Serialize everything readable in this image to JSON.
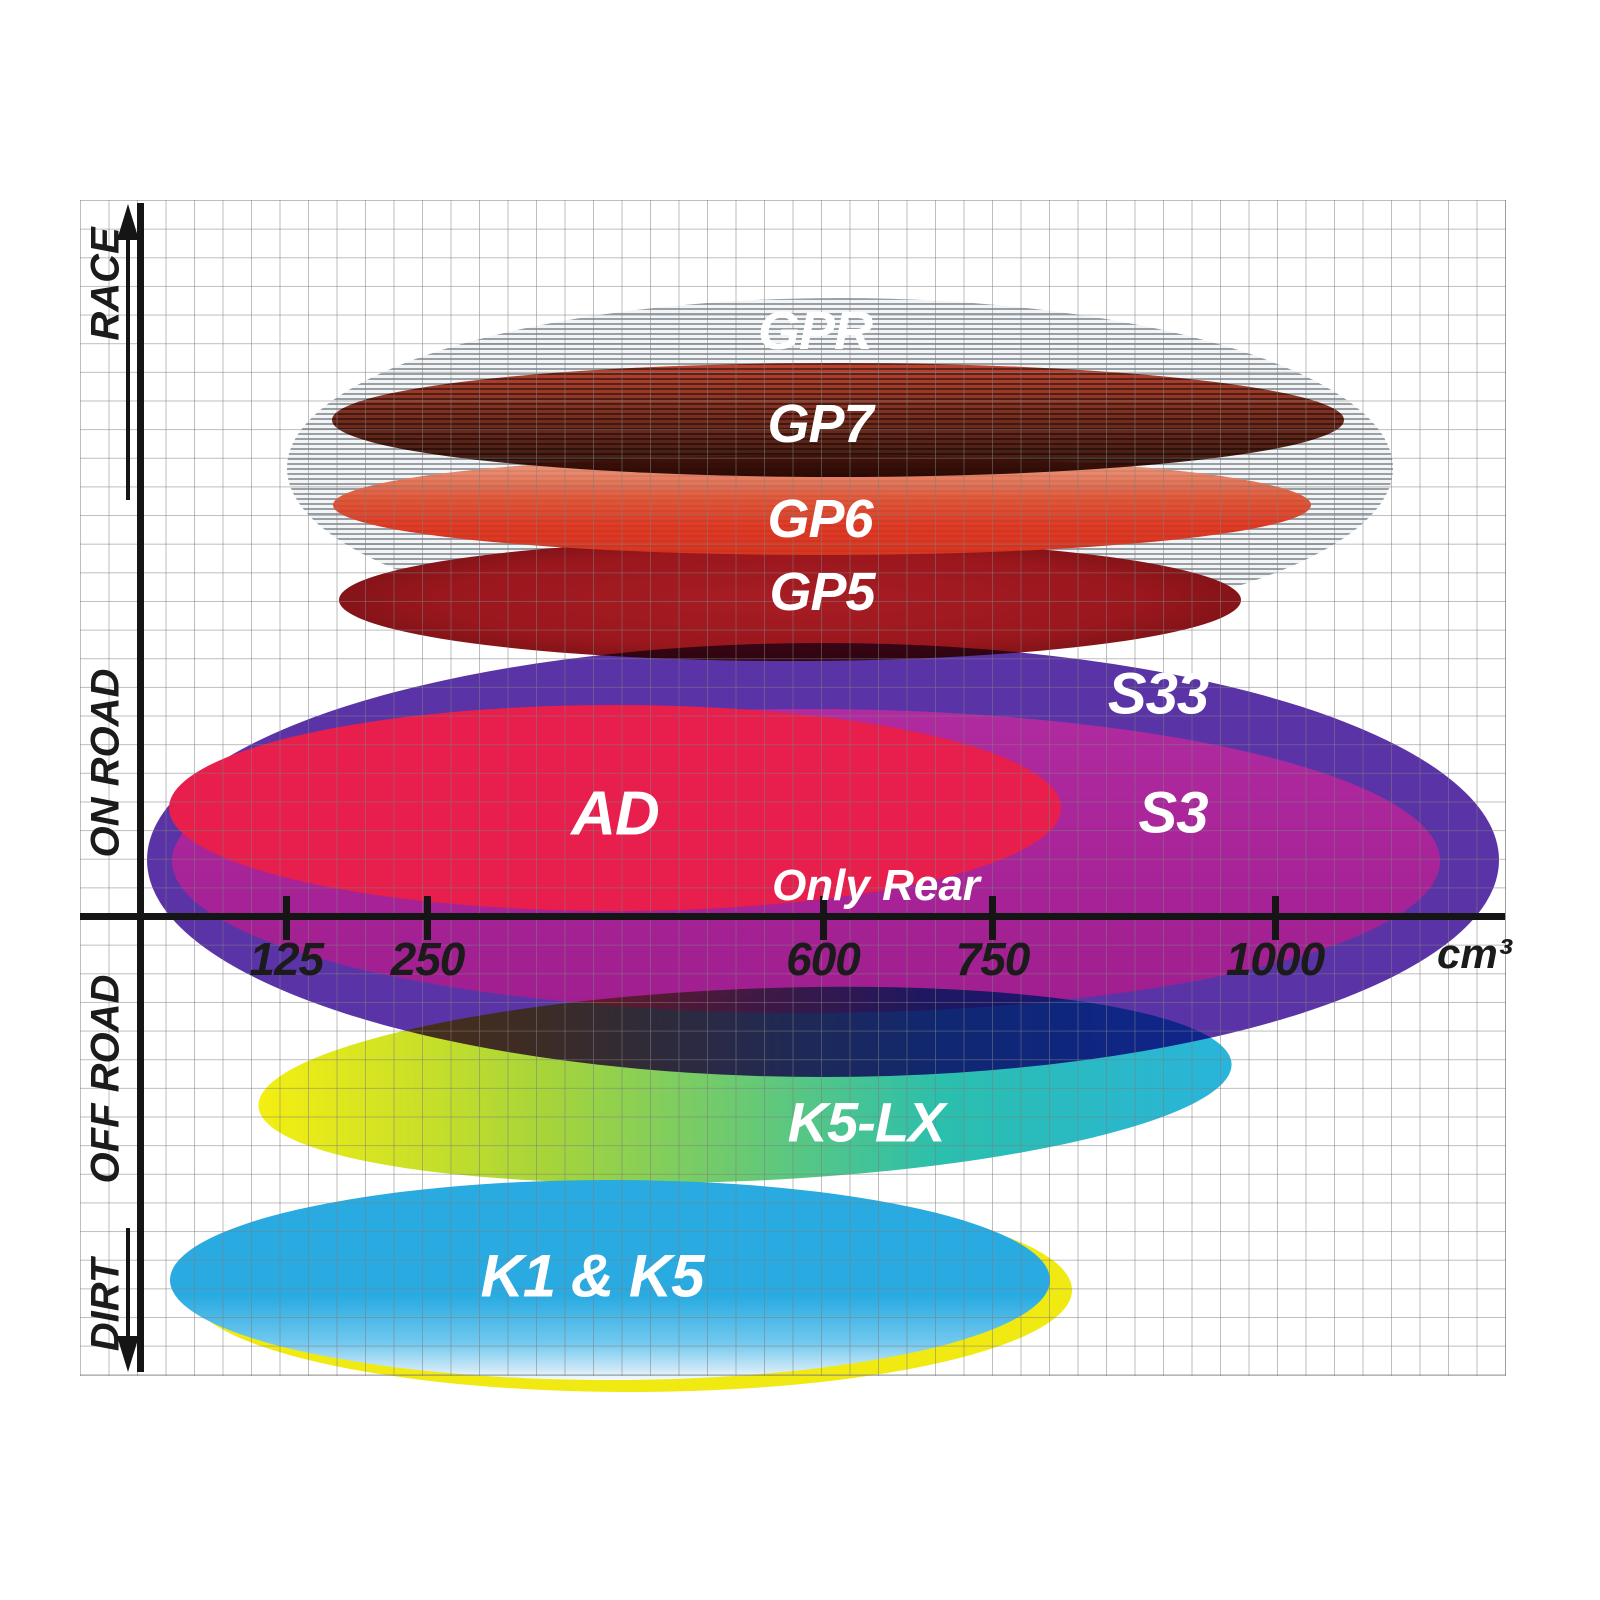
{
  "chart_data": {
    "type": "area",
    "subtype": "ellipse-overlap-map",
    "title": "",
    "x_axis": {
      "unit": "cm³",
      "ticks": [
        125,
        250,
        600,
        750,
        1000
      ],
      "range_cc": [
        0,
        1200
      ],
      "scale": "linear"
    },
    "y_axis": {
      "zones": [
        "RACE",
        "ON ROAD",
        "OFF ROAD",
        "DIRT"
      ],
      "arrow_up_zone": "RACE",
      "arrow_down_zone": "DIRT"
    },
    "grid": "on",
    "series": [
      {
        "id": "gpr",
        "label": "GPR",
        "terrain": "RACE",
        "displacement_cc": [
          125,
          1105
        ],
        "colors": [
          "#98a0a6",
          "#f3f4f5"
        ],
        "pattern": "horizontal-stripes"
      },
      {
        "id": "gp5",
        "label": "GP5",
        "terrain": "RACE",
        "displacement_cc": [
          170,
          970
        ],
        "colors": [
          "#a81d24",
          "#9a171d",
          "#5c0d10"
        ]
      },
      {
        "id": "gp6",
        "label": "GP6",
        "terrain": "RACE",
        "displacement_cc": [
          165,
          1030
        ],
        "colors": [
          "#eba98e",
          "#e0573a",
          "#df3a25",
          "#d93620"
        ]
      },
      {
        "id": "gp7",
        "label": "GP7",
        "terrain": "RACE",
        "displacement_cc": [
          165,
          1060
        ],
        "colors": [
          "#c84731",
          "#2f150d"
        ],
        "pattern": "horizontal-stripes"
      },
      {
        "id": "s33",
        "label": "S33",
        "terrain": "ON ROAD",
        "displacement_cc": [
          0,
          1200
        ],
        "colors": [
          "#5a34a7"
        ]
      },
      {
        "id": "s3",
        "label": "S3",
        "terrain": "ON ROAD",
        "displacement_cc": [
          25,
          1145
        ],
        "colors": [
          "#b02aa0",
          "#a01e90"
        ]
      },
      {
        "id": "ad",
        "label": "AD",
        "terrain": "ON ROAD",
        "displacement_cc": [
          20,
          810
        ],
        "note": "Only Rear",
        "colors": [
          "#e81e4d"
        ]
      },
      {
        "id": "k5lx",
        "label": "K5-LX",
        "terrain": "OFF ROAD",
        "displacement_cc": [
          100,
          960
        ],
        "colors": [
          "#f6ef11",
          "#a6d43a",
          "#2bbfad",
          "#29b4dc"
        ]
      },
      {
        "id": "k1k5",
        "label": "K1 & K5",
        "terrain": "DIRT",
        "displacement_cc": [
          20,
          800
        ],
        "colors": [
          "#29abe2",
          "#f4fbfe"
        ],
        "halo_color": "#f0e912"
      }
    ],
    "annotations": [
      {
        "id": "only-rear",
        "text": "Only Rear",
        "attached_to": "ad"
      }
    ]
  }
}
